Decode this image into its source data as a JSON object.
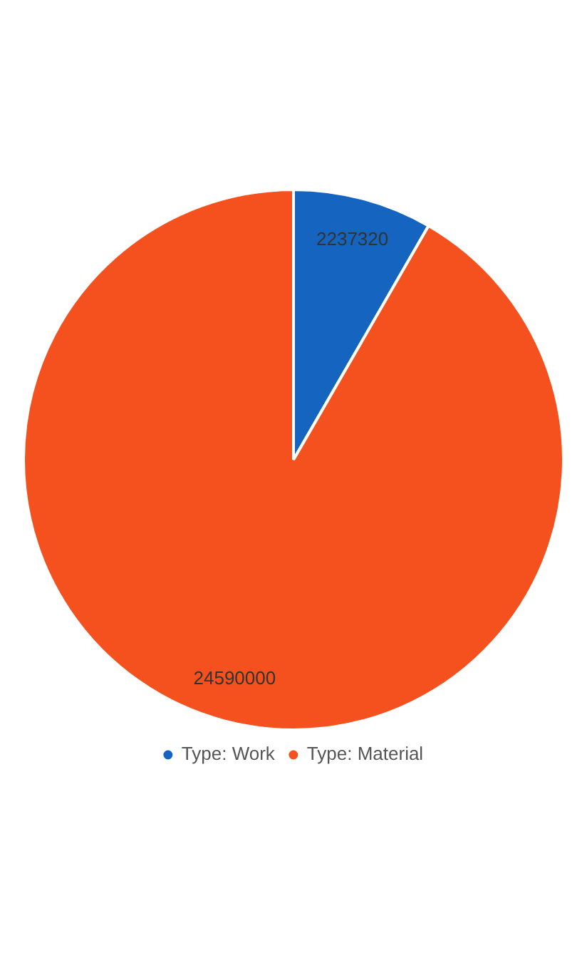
{
  "chart_data": {
    "type": "pie",
    "categories": [
      "Type: Work",
      "Type: Material"
    ],
    "values": [
      2237320,
      24590000
    ],
    "colors": [
      "#1565c0",
      "#f4511e"
    ],
    "data_labels": true,
    "legend": "bottom"
  }
}
